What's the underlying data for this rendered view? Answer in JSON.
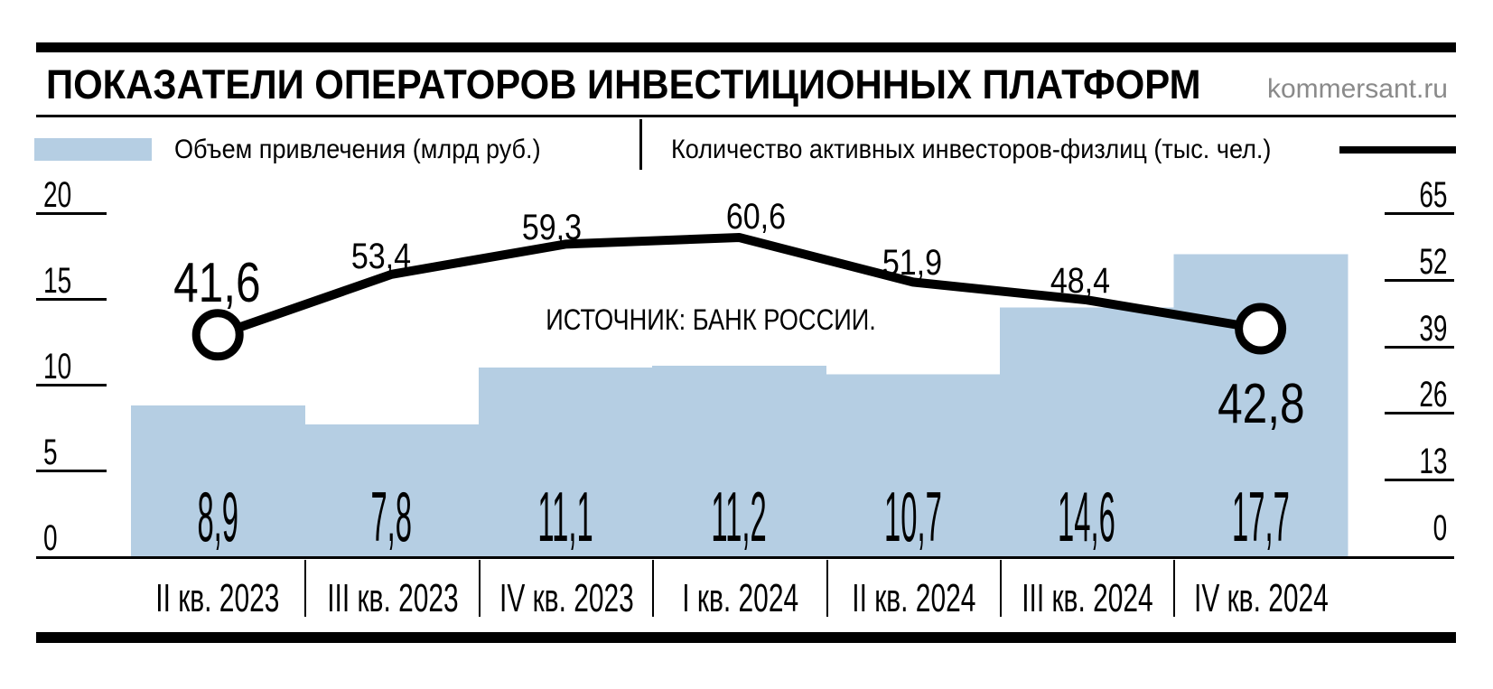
{
  "header": {
    "title": "ПОКАЗАТЕЛИ ОПЕРАТОРОВ ИНВЕСТИЦИОННЫХ ПЛАТФОРМ",
    "brand": "kommersant.ru"
  },
  "legend": {
    "bars_label": "Объем привлечения (млрд руб.)",
    "line_label": "Количество активных инвесторов-физлиц (тыс. чел.)"
  },
  "source": "ИСТОЧНИК: БАНК РОССИИ.",
  "colors": {
    "bar": "#b5cee3",
    "line": "#000000",
    "brand_gray": "#8a8a8a",
    "text": "#000000"
  },
  "chart_data": {
    "type": "bar",
    "subtype": "bar+line combo, dual axis",
    "title": "ПОКАЗАТЕЛИ ОПЕРАТОРОВ ИНВЕСТИЦИОННЫХ ПЛАТФОРМ",
    "categories": [
      "II кв. 2023",
      "III кв. 2023",
      "IV кв. 2023",
      "I кв. 2024",
      "II кв. 2024",
      "III кв. 2024",
      "IV кв. 2024"
    ],
    "series": [
      {
        "name": "Объем привлечения (млрд руб.)",
        "type": "bar",
        "axis": "left",
        "values": [
          8.9,
          7.8,
          11.1,
          11.2,
          10.7,
          14.6,
          17.7
        ],
        "labels": [
          "8,9",
          "7,8",
          "11,1",
          "11,2",
          "10,7",
          "14,6",
          "17,7"
        ]
      },
      {
        "name": "Количество активных инвесторов-физлиц (тыс. чел.)",
        "type": "line",
        "axis": "right",
        "values": [
          41.6,
          53.4,
          59.3,
          60.6,
          51.9,
          48.4,
          42.8
        ],
        "labels": [
          "41,6",
          "53,4",
          "59,3",
          "60,6",
          "51,9",
          "48,4",
          "42,8"
        ],
        "marker_points": [
          0,
          6
        ]
      }
    ],
    "left_axis": {
      "ticks": [
        0,
        5,
        10,
        15,
        20
      ],
      "range": [
        0,
        20
      ]
    },
    "right_axis": {
      "ticks": [
        0,
        13,
        26,
        39,
        52,
        65
      ],
      "range": [
        0,
        65
      ]
    },
    "grid": false,
    "legend_position": "top"
  }
}
